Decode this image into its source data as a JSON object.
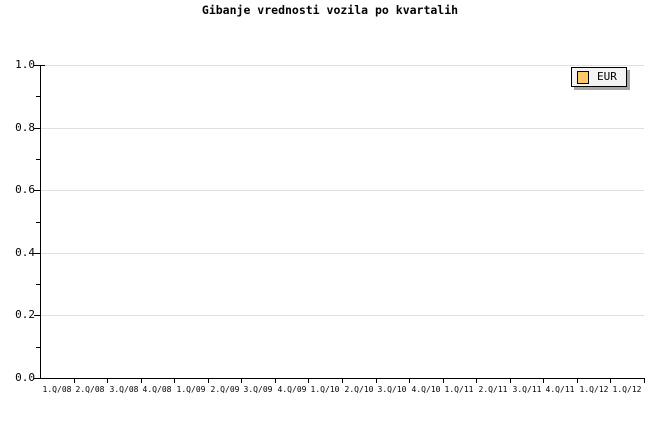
{
  "title": "Gibanje vrednosti vozila po kvartalih",
  "legend": {
    "label": "EUR",
    "swatch_color": "#FFC966"
  },
  "colors": {
    "background": "#FFFFFF",
    "axis": "#000000",
    "grid": "#E0E0E0",
    "text": "#000000",
    "legend_background": "#F4F4F4",
    "legend_border": "#000000",
    "legend_shadow": "#A6A6A6"
  },
  "chart_data": {
    "type": "line",
    "title": "Gibanje vrednosti vozila po kvartalih",
    "categories": [
      "1.Q/08",
      "2.Q/08",
      "3.Q/08",
      "4.Q/08",
      "1.Q/09",
      "2.Q/09",
      "3.Q/09",
      "4.Q/09",
      "1.Q/10",
      "2.Q/10",
      "3.Q/10",
      "4.Q/10",
      "1.Q/11",
      "2.Q/11",
      "3.Q/11",
      "4.Q/11",
      "1.Q/12",
      "1.Q/12"
    ],
    "series": [
      {
        "name": "EUR",
        "values": []
      }
    ],
    "xlabel": "",
    "ylabel": "",
    "ylim": [
      0.0,
      1.0
    ],
    "y_major_ticks": [
      {
        "value": 0.0,
        "label": "0.0"
      },
      {
        "value": 0.2,
        "label": "0.2"
      },
      {
        "value": 0.4,
        "label": "0.4"
      },
      {
        "value": 0.6,
        "label": "0.6"
      },
      {
        "value": 0.8,
        "label": "0.8"
      },
      {
        "value": 1.0,
        "label": "1.0"
      }
    ],
    "y_minor_ticks": [
      0.1,
      0.3,
      0.5,
      0.7,
      0.9
    ],
    "grid": "horizontal gridlines at major y ticks",
    "legend_position": "top-right inside plot",
    "plot_empty": true
  }
}
